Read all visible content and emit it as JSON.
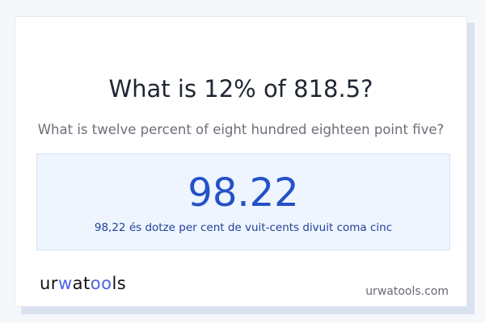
{
  "title": "What is 12% of 818.5?",
  "subtitle": "What is twelve percent of eight hundred eighteen point five?",
  "result": {
    "value": "98.22",
    "words": "98,22 és dotze per cent de vuit-cents divuit coma cinc"
  },
  "footer": {
    "logo": "urwatools",
    "site": "urwatools.com"
  },
  "colors": {
    "accent": "#2451c8",
    "result_bg": "#eef5fe",
    "logo_accent": "#4a63e0"
  }
}
